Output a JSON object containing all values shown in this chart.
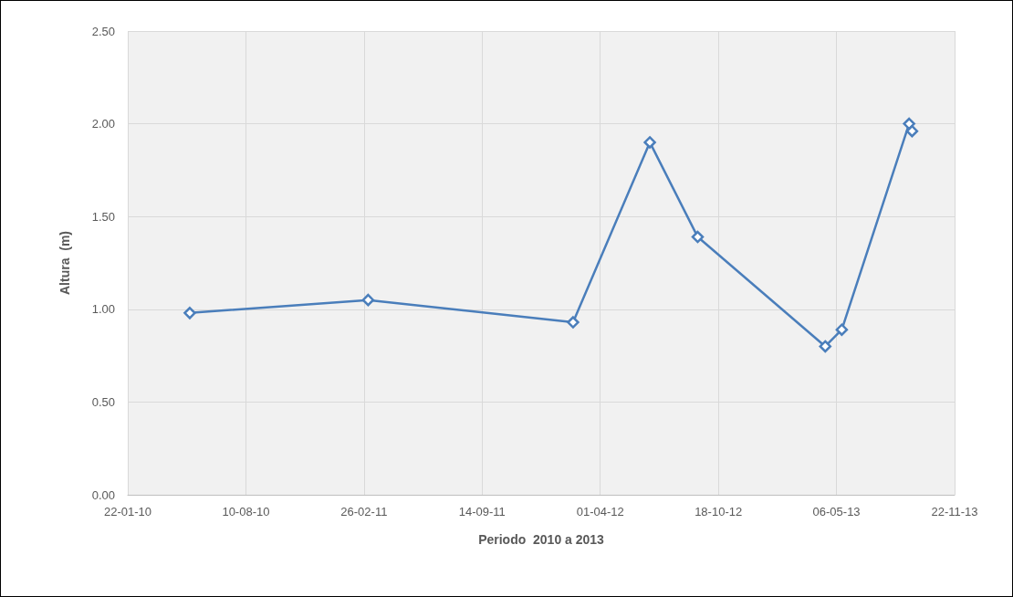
{
  "chart_data": {
    "type": "line",
    "xlabel": "Periodo  2010 a 2013",
    "ylabel": "Altura  (m)",
    "x": [
      "2010-05-07",
      "2011-03-05",
      "2012-02-15",
      "2012-06-24",
      "2012-09-13",
      "2013-04-17",
      "2013-05-15",
      "2013-09-06",
      "2013-09-11"
    ],
    "series": [
      {
        "color": "#4a7ebb",
        "values": [
          0.98,
          1.05,
          0.93,
          1.9,
          1.39,
          0.8,
          0.89,
          2.0,
          1.96
        ]
      }
    ],
    "xlim": [
      "2010-01-22",
      "2013-11-22"
    ],
    "xticks": [
      {
        "value": "2010-01-22",
        "label": "22-01-10"
      },
      {
        "value": "2010-08-10",
        "label": "10-08-10"
      },
      {
        "value": "2011-02-26",
        "label": "26-02-11"
      },
      {
        "value": "2011-09-14",
        "label": "14-09-11"
      },
      {
        "value": "2012-04-01",
        "label": "01-04-12"
      },
      {
        "value": "2012-10-18",
        "label": "18-10-12"
      },
      {
        "value": "2013-05-06",
        "label": "06-05-13"
      },
      {
        "value": "2013-11-22",
        "label": "22-11-13"
      }
    ],
    "ylim": [
      0,
      2.5
    ],
    "yticks": [
      {
        "value": 0,
        "label": "0.00"
      },
      {
        "value": 0.5,
        "label": "0.50"
      },
      {
        "value": 1,
        "label": "1.00"
      },
      {
        "value": 1.5,
        "label": "1.50"
      },
      {
        "value": 2,
        "label": "2.00"
      },
      {
        "value": 2.5,
        "label": "2.50"
      }
    ],
    "grid": true,
    "marker": "diamond",
    "line_style": "solid"
  }
}
